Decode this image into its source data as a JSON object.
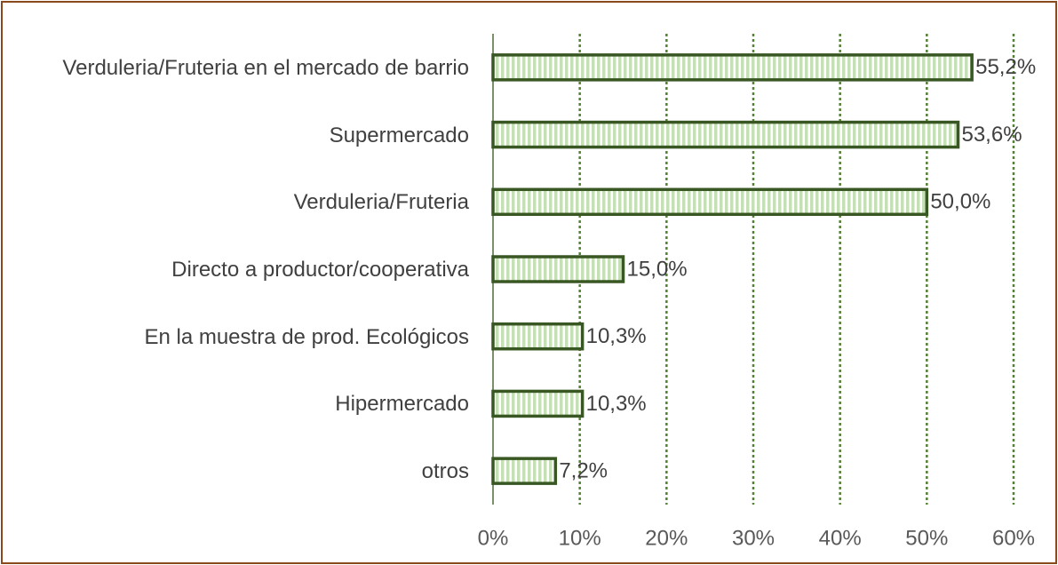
{
  "chart_data": {
    "type": "bar",
    "orientation": "horizontal",
    "categories": [
      "Verduleria/Fruteria en el mercado de barrio",
      "Supermercado",
      "Verduleria/Fruteria",
      "Directo a productor/cooperativa",
      "En la muestra de prod. Ecológicos",
      "Hipermercado",
      "otros"
    ],
    "values": [
      55.2,
      53.6,
      50.0,
      15.0,
      10.3,
      10.3,
      7.2
    ],
    "value_labels": [
      "55,2%",
      "53,6%",
      "50,0%",
      "15,0%",
      "10,3%",
      "10,3%",
      "7,2%"
    ],
    "color": "#c5e0b4",
    "edge_color": "#385723",
    "xlim": [
      0,
      60
    ],
    "xticks": [
      {
        "value": 0,
        "label": "0%"
      },
      {
        "value": 10,
        "label": "10%"
      },
      {
        "value": 20,
        "label": "20%"
      },
      {
        "value": 30,
        "label": "30%"
      },
      {
        "value": 40,
        "label": "40%"
      },
      {
        "value": 50,
        "label": "50%"
      },
      {
        "value": 60,
        "label": "60%"
      }
    ],
    "grid": true
  }
}
